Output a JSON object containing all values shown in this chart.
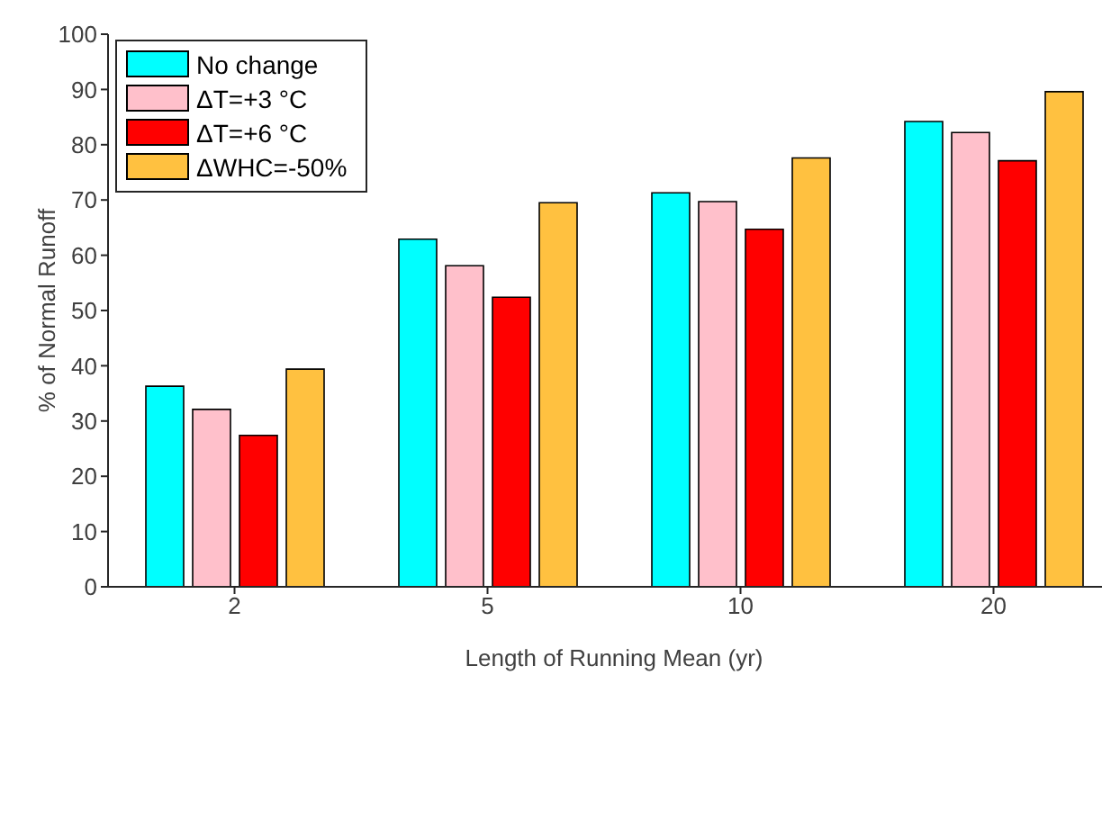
{
  "chart_data": {
    "type": "bar",
    "xlabel": "Length of Running Mean (yr)",
    "ylabel": "% of Normal Runoff",
    "categories": [
      "2",
      "5",
      "10",
      "20"
    ],
    "series": [
      {
        "name": "No change",
        "color": "#00ffff",
        "values": [
          36.3,
          62.9,
          71.3,
          84.2
        ]
      },
      {
        "name": "ΔT=+3 °C",
        "color": "#ffc0cb",
        "values": [
          32.1,
          58.1,
          69.7,
          82.2
        ]
      },
      {
        "name": "ΔT=+6 °C",
        "color": "#ff0000",
        "values": [
          27.4,
          52.4,
          64.7,
          77.1
        ]
      },
      {
        "name": "ΔWHC=-50%",
        "color": "#ffc140",
        "values": [
          39.4,
          69.5,
          77.6,
          89.6
        ]
      }
    ],
    "ylim": [
      0,
      100
    ],
    "yticks": [
      0,
      10,
      20,
      30,
      40,
      50,
      60,
      70,
      80,
      90,
      100
    ],
    "grid": false,
    "legend": "top left"
  }
}
